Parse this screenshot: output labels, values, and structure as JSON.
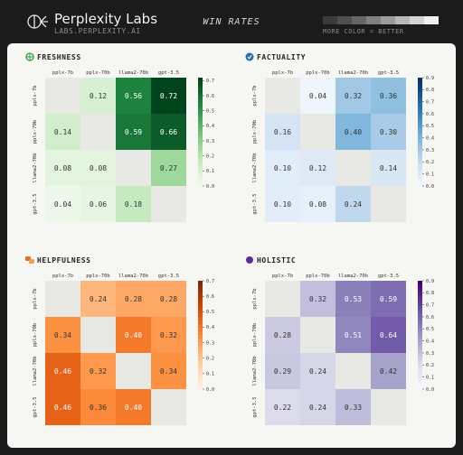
{
  "header": {
    "brand": "Perplexity Labs",
    "url": "LABS.PERPLEXITY.AI",
    "title": "WIN RATES",
    "scale_caption": "MORE COLOR = BETTER",
    "scale_swatches": [
      "#3a3a3a",
      "#4e4e4e",
      "#666666",
      "#808080",
      "#9c9c9c",
      "#b8b8b8",
      "#d4d4d4",
      "#f0f0f0"
    ]
  },
  "chart_data": [
    {
      "type": "heatmap",
      "title": "FRESHNESS",
      "icon": "globe-icon",
      "icon_color": "#3a9a3a",
      "palette": [
        "#f7fcf5",
        "#c7e9c0",
        "#74c476",
        "#238b45",
        "#00441b"
      ],
      "categories": [
        "pplx-7b",
        "pplx-70b",
        "llama2-70b",
        "gpt-3.5"
      ],
      "values": [
        [
          null,
          0.12,
          0.56,
          0.72
        ],
        [
          0.14,
          null,
          0.59,
          0.66
        ],
        [
          0.08,
          0.08,
          null,
          0.27
        ],
        [
          0.04,
          0.06,
          0.18,
          null
        ]
      ],
      "colorbar_ticks": [
        "0.0",
        "0.1",
        "0.2",
        "0.3",
        "0.4",
        "0.5",
        "0.6",
        "0.7"
      ],
      "vmax": 0.72
    },
    {
      "type": "heatmap",
      "title": "FACTUALITY",
      "icon": "check-badge-icon",
      "icon_color": "#1f6fb8",
      "palette": [
        "#f7fbff",
        "#c6dbef",
        "#6baed6",
        "#2171b5",
        "#08306b"
      ],
      "categories": [
        "pplx-7b",
        "pplx-70b",
        "llama2-70b",
        "gpt-3.5"
      ],
      "values": [
        [
          null,
          0.04,
          0.32,
          0.36
        ],
        [
          0.16,
          null,
          0.4,
          0.3
        ],
        [
          0.1,
          0.12,
          null,
          0.14
        ],
        [
          0.1,
          0.08,
          0.24,
          null
        ]
      ],
      "colorbar_ticks": [
        "0.0",
        "0.1",
        "0.2",
        "0.3",
        "0.4",
        "0.5",
        "0.6",
        "0.7",
        "0.8",
        "0.9"
      ],
      "vmax": 0.9
    },
    {
      "type": "heatmap",
      "title": "HELPFULNESS",
      "icon": "chat-bubbles-icon",
      "icon_color": "#e07020",
      "palette": [
        "#fff5eb",
        "#fdd0a2",
        "#fd8d3c",
        "#d94801",
        "#7f2704"
      ],
      "categories": [
        "pplx-7b",
        "pplx-70b",
        "llama2-70b",
        "gpt-3.5"
      ],
      "values": [
        [
          null,
          0.24,
          0.28,
          0.28
        ],
        [
          0.34,
          null,
          0.4,
          0.32
        ],
        [
          0.46,
          0.32,
          null,
          0.34
        ],
        [
          0.46,
          0.36,
          0.4,
          null
        ]
      ],
      "colorbar_ticks": [
        "0.0",
        "0.1",
        "0.2",
        "0.3",
        "0.4",
        "0.5",
        "0.6",
        "0.7"
      ],
      "vmax": 0.7
    },
    {
      "type": "heatmap",
      "title": "HOLISTIC",
      "icon": "dot-icon",
      "icon_color": "#5a2d9c",
      "palette": [
        "#fcfbfd",
        "#dadaeb",
        "#9e9ac8",
        "#6a51a3",
        "#3f007d"
      ],
      "categories": [
        "pplx-7b",
        "pplx-70b",
        "llama2-70b",
        "gpt-3.5"
      ],
      "values": [
        [
          null,
          0.32,
          0.53,
          0.59
        ],
        [
          0.28,
          null,
          0.51,
          0.64
        ],
        [
          0.29,
          0.24,
          null,
          0.42
        ],
        [
          0.22,
          0.24,
          0.33,
          null
        ]
      ],
      "colorbar_ticks": [
        "0.0",
        "0.1",
        "0.2",
        "0.3",
        "0.4",
        "0.5",
        "0.6",
        "0.7",
        "0.8",
        "0.9"
      ],
      "vmax": 0.9
    }
  ]
}
